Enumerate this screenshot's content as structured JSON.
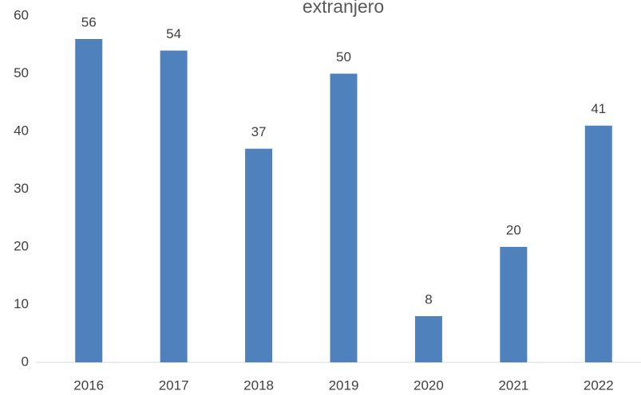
{
  "chart_data": {
    "type": "bar",
    "title": "extranjero",
    "categories": [
      "2016",
      "2017",
      "2018",
      "2019",
      "2020",
      "2021",
      "2022"
    ],
    "values": [
      56,
      54,
      37,
      50,
      8,
      20,
      41
    ],
    "color": "#4f81bd",
    "ylim": [
      0,
      60
    ],
    "yticks": [
      0,
      10,
      20,
      30,
      40,
      50,
      60
    ],
    "grid": false
  }
}
